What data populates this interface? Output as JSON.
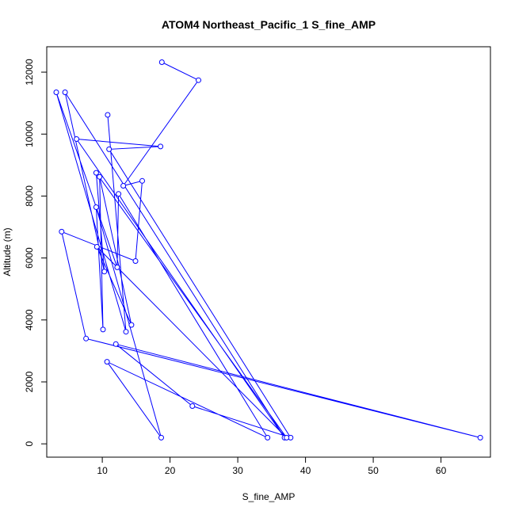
{
  "chart_data": {
    "type": "line",
    "title": "ATOM4 Northeast_Pacific_1 S_fine_AMP",
    "xlabel": "S_fine_AMP",
    "ylabel": "Altitude (m)",
    "xlim": [
      1.8,
      67.3
    ],
    "ylim": [
      -430,
      12820
    ],
    "x_ticks": [
      10,
      20,
      30,
      40,
      50,
      60
    ],
    "y_ticks": [
      0,
      2000,
      4000,
      6000,
      8000,
      10000,
      12000
    ],
    "grid": false,
    "legend": "none",
    "color": "#0000ff",
    "series": [
      {
        "x": [
          18.8,
          24.2,
          13.1,
          15.9,
          14.9,
          4.0,
          7.6,
          65.8,
          12.0,
          23.3,
          37.8,
          11.0,
          18.6,
          6.2,
          36.9,
          4.5,
          10.3,
          9.1,
          37.2,
          9.2,
          14.3,
          9.6,
          10.1,
          9.1,
          18.7,
          10.7,
          34.4,
          12.4,
          12.2,
          3.2,
          13.5,
          10.8
        ],
        "y": [
          12320,
          11740,
          8330,
          8490,
          5900,
          6850,
          3400,
          200,
          3220,
          1220,
          200,
          9510,
          9600,
          9840,
          200,
          11350,
          5560,
          8750,
          200,
          6360,
          3840,
          8620,
          3690,
          7640,
          200,
          2650,
          200,
          8070,
          5700,
          11350,
          3620,
          10620
        ]
      }
    ]
  }
}
